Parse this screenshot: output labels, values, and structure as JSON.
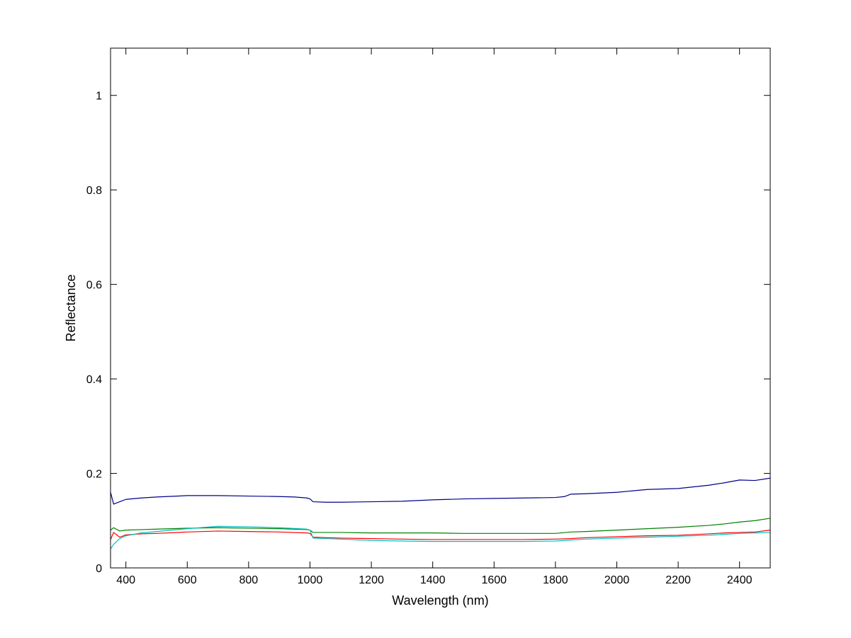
{
  "chart_data": {
    "type": "line",
    "title": "",
    "xlabel": "Wavelength (nm)",
    "ylabel": "Reflectance",
    "xlim": [
      350,
      2500
    ],
    "ylim": [
      0,
      1.1
    ],
    "xticks": [
      400,
      600,
      800,
      1000,
      1200,
      1400,
      1600,
      1800,
      2000,
      2200,
      2400
    ],
    "yticks": [
      0,
      0.2,
      0.4,
      0.6,
      0.8,
      1
    ],
    "ytick_labels": [
      "0",
      "0.2",
      "0.4",
      "0.6",
      "0.8",
      "1"
    ],
    "grid": false,
    "legend": "none",
    "series": [
      {
        "color": "#00008b",
        "x": [
          350,
          360,
          380,
          400,
          450,
          500,
          600,
          700,
          800,
          900,
          950,
          990,
          1000,
          1010,
          1050,
          1100,
          1200,
          1300,
          1400,
          1500,
          1600,
          1700,
          1800,
          1830,
          1850,
          1900,
          2000,
          2100,
          2200,
          2300,
          2350,
          2400,
          2450,
          2500
        ],
        "y": [
          0.16,
          0.135,
          0.14,
          0.145,
          0.148,
          0.15,
          0.153,
          0.153,
          0.152,
          0.151,
          0.15,
          0.148,
          0.146,
          0.14,
          0.139,
          0.139,
          0.14,
          0.141,
          0.144,
          0.146,
          0.147,
          0.148,
          0.149,
          0.151,
          0.156,
          0.157,
          0.16,
          0.166,
          0.168,
          0.175,
          0.18,
          0.186,
          0.185,
          0.19
        ]
      },
      {
        "color": "#008000",
        "x": [
          350,
          360,
          380,
          400,
          450,
          500,
          600,
          700,
          800,
          900,
          990,
          1000,
          1010,
          1100,
          1200,
          1300,
          1400,
          1500,
          1600,
          1700,
          1800,
          1850,
          1900,
          2000,
          2100,
          2200,
          2300,
          2350,
          2400,
          2450,
          2500
        ],
        "y": [
          0.08,
          0.085,
          0.078,
          0.08,
          0.081,
          0.082,
          0.084,
          0.085,
          0.084,
          0.083,
          0.081,
          0.08,
          0.075,
          0.075,
          0.074,
          0.074,
          0.074,
          0.073,
          0.073,
          0.073,
          0.073,
          0.076,
          0.077,
          0.08,
          0.083,
          0.086,
          0.09,
          0.093,
          0.097,
          0.1,
          0.105
        ]
      },
      {
        "color": "#ff0000",
        "x": [
          350,
          360,
          380,
          400,
          450,
          500,
          600,
          700,
          800,
          900,
          990,
          1000,
          1010,
          1100,
          1200,
          1300,
          1400,
          1500,
          1600,
          1700,
          1800,
          1850,
          1900,
          2000,
          2100,
          2200,
          2300,
          2350,
          2400,
          2450,
          2500
        ],
        "y": [
          0.06,
          0.075,
          0.065,
          0.07,
          0.072,
          0.073,
          0.076,
          0.078,
          0.077,
          0.076,
          0.074,
          0.073,
          0.065,
          0.063,
          0.062,
          0.061,
          0.06,
          0.06,
          0.06,
          0.06,
          0.061,
          0.062,
          0.064,
          0.066,
          0.068,
          0.069,
          0.072,
          0.074,
          0.075,
          0.076,
          0.08
        ]
      },
      {
        "color": "#00bfbf",
        "x": [
          350,
          360,
          380,
          400,
          450,
          500,
          600,
          700,
          800,
          900,
          990,
          1000,
          1010,
          1100,
          1200,
          1300,
          1400,
          1500,
          1600,
          1700,
          1800,
          1850,
          1900,
          2000,
          2100,
          2200,
          2300,
          2350,
          2400,
          2450,
          2500
        ],
        "y": [
          0.04,
          0.05,
          0.062,
          0.068,
          0.074,
          0.077,
          0.083,
          0.088,
          0.087,
          0.085,
          0.082,
          0.08,
          0.063,
          0.061,
          0.058,
          0.057,
          0.056,
          0.056,
          0.056,
          0.056,
          0.057,
          0.059,
          0.061,
          0.063,
          0.065,
          0.067,
          0.069,
          0.071,
          0.073,
          0.074,
          0.075
        ]
      }
    ]
  }
}
